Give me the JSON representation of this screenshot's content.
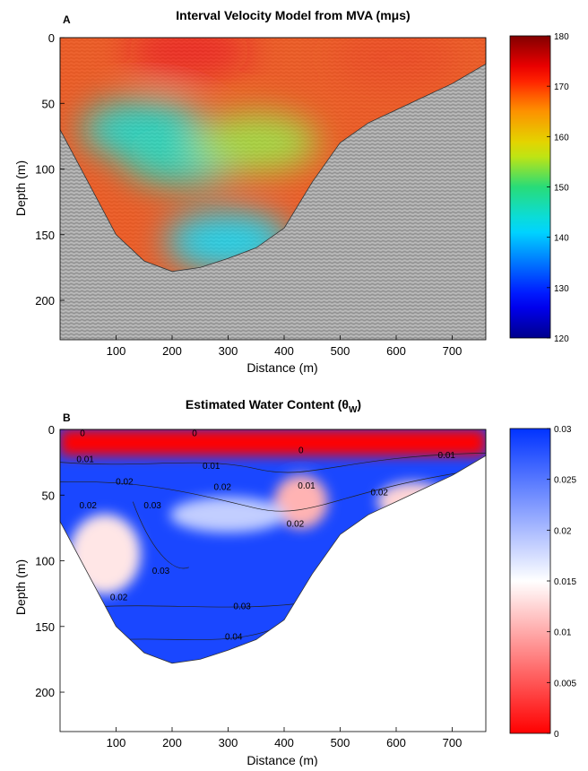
{
  "chart_data": [
    {
      "panel_label": "A",
      "type": "heatmap",
      "title_parts": [
        "Interval Velocity Model from MVA (m",
        "μ",
        "s)"
      ],
      "xlabel": "Distance (m)",
      "ylabel": "Depth (m)",
      "xlim": [
        0,
        760
      ],
      "ylim": [
        0,
        230
      ],
      "y_reversed": true,
      "x_ticks": [
        "100",
        "200",
        "300",
        "400",
        "500",
        "600",
        "700"
      ],
      "y_ticks": [
        "0",
        "50",
        "100",
        "150",
        "200"
      ],
      "colorbar": {
        "min": 120,
        "max": 180,
        "ticks": [
          "180",
          "170",
          "160",
          "150",
          "140",
          "130",
          "120"
        ],
        "colormap": "jet"
      },
      "background": "gray seismic image",
      "boundary_depth_profile": [
        [
          0,
          70
        ],
        [
          50,
          110
        ],
        [
          100,
          150
        ],
        [
          150,
          170
        ],
        [
          200,
          178
        ],
        [
          250,
          175
        ],
        [
          300,
          168
        ],
        [
          350,
          160
        ],
        [
          400,
          145
        ],
        [
          450,
          110
        ],
        [
          500,
          80
        ],
        [
          550,
          65
        ],
        [
          600,
          55
        ],
        [
          650,
          45
        ],
        [
          700,
          35
        ],
        [
          760,
          20
        ]
      ],
      "velocity_regions": [
        {
          "x": 230,
          "depth": 10,
          "value": 172
        },
        {
          "x": 600,
          "depth": 15,
          "value": 170
        },
        {
          "x": 150,
          "depth": 70,
          "value": 145
        },
        {
          "x": 220,
          "depth": 90,
          "value": 146
        },
        {
          "x": 350,
          "depth": 80,
          "value": 155
        },
        {
          "x": 300,
          "depth": 155,
          "value": 142
        }
      ]
    },
    {
      "panel_label": "B",
      "type": "heatmap",
      "title_parts": [
        "Estimated Water Content (",
        "θ",
        "W",
        ")"
      ],
      "xlabel": "Distance (m)",
      "ylabel": "Depth (m)",
      "xlim": [
        0,
        760
      ],
      "ylim": [
        0,
        230
      ],
      "y_reversed": true,
      "x_ticks": [
        "100",
        "200",
        "300",
        "400",
        "500",
        "600",
        "700"
      ],
      "y_ticks": [
        "0",
        "50",
        "100",
        "150",
        "200"
      ],
      "colorbar": {
        "min": 0,
        "max": 0.03,
        "ticks": [
          "0.03",
          "0.025",
          "0.02",
          "0.015",
          "0.01",
          "0.005",
          "0"
        ],
        "colors": [
          "#ff0000",
          "#ffffff",
          "#0033ff"
        ]
      },
      "contour_labels": [
        {
          "text": "0",
          "x": 40,
          "depth": 5
        },
        {
          "text": "0",
          "x": 240,
          "depth": 5
        },
        {
          "text": "0",
          "x": 430,
          "depth": 18
        },
        {
          "text": "0.01",
          "x": 45,
          "depth": 25
        },
        {
          "text": "0.01",
          "x": 270,
          "depth": 30
        },
        {
          "text": "0.01",
          "x": 440,
          "depth": 45
        },
        {
          "text": "0.01",
          "x": 690,
          "depth": 22
        },
        {
          "text": "0.02",
          "x": 115,
          "depth": 42
        },
        {
          "text": "0.02",
          "x": 290,
          "depth": 46
        },
        {
          "text": "0.02",
          "x": 50,
          "depth": 60
        },
        {
          "text": "0.02",
          "x": 570,
          "depth": 50
        },
        {
          "text": "0.02",
          "x": 420,
          "depth": 74
        },
        {
          "text": "0.02",
          "x": 105,
          "depth": 130
        },
        {
          "text": "0.03",
          "x": 165,
          "depth": 60
        },
        {
          "text": "0.03",
          "x": 180,
          "depth": 110
        },
        {
          "text": "0.03",
          "x": 325,
          "depth": 137
        },
        {
          "text": "0.04",
          "x": 310,
          "depth": 160
        }
      ]
    }
  ]
}
